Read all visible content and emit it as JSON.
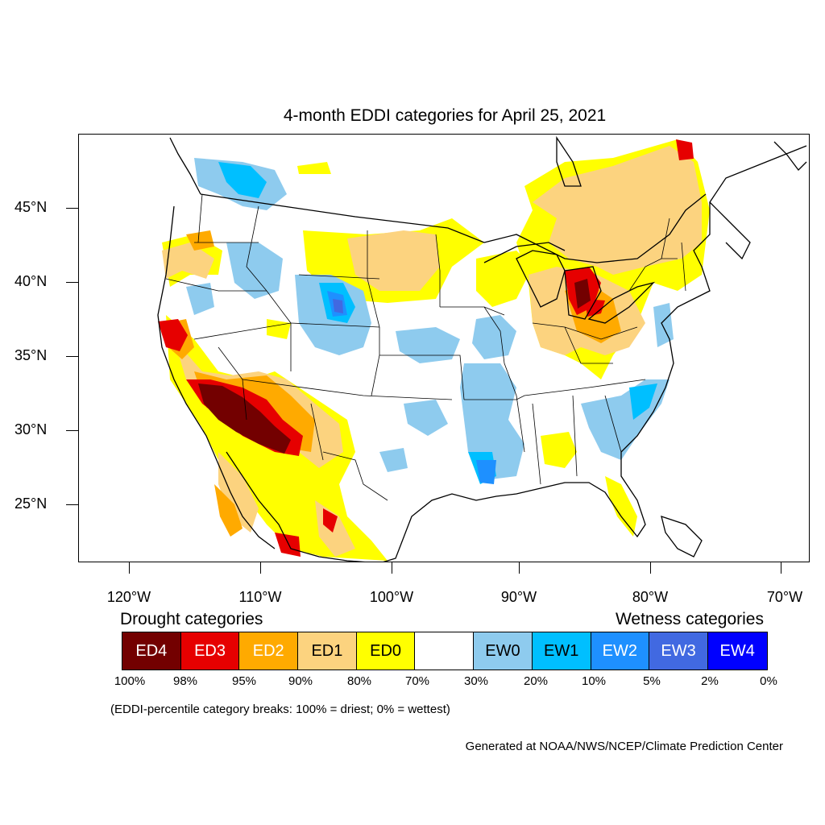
{
  "title": "4-month EDDI categories for April 25, 2021",
  "latitude_labels": [
    "45°N",
    "40°N",
    "35°N",
    "30°N",
    "25°N"
  ],
  "longitude_labels": [
    "120°W",
    "110°W",
    "100°W",
    "90°W",
    "80°W",
    "70°W"
  ],
  "legend": {
    "drought_heading": "Drought categories",
    "wetness_heading": "Wetness categories",
    "categories": [
      {
        "label": "ED4",
        "color": "#730000",
        "text_color": "#ffffff"
      },
      {
        "label": "ED3",
        "color": "#e60000",
        "text_color": "#ffffff"
      },
      {
        "label": "ED2",
        "color": "#ffaa00",
        "text_color": "#ffffff"
      },
      {
        "label": "ED1",
        "color": "#fcd37f",
        "text_color": "#000000"
      },
      {
        "label": "ED0",
        "color": "#ffff00",
        "text_color": "#000000"
      },
      {
        "label": "",
        "color": "#ffffff",
        "text_color": "#000000"
      },
      {
        "label": "EW0",
        "color": "#8ecbee",
        "text_color": "#000000"
      },
      {
        "label": "EW1",
        "color": "#00bfff",
        "text_color": "#000000"
      },
      {
        "label": "EW2",
        "color": "#1e90ff",
        "text_color": "#ffffff"
      },
      {
        "label": "EW3",
        "color": "#4169e1",
        "text_color": "#ffffff"
      },
      {
        "label": "EW4",
        "color": "#0000ff",
        "text_color": "#ffffff"
      }
    ],
    "percentile_labels": [
      "100%",
      "98%",
      "95%",
      "90%",
      "80%",
      "70%",
      "30%",
      "20%",
      "10%",
      "5%",
      "2%",
      "0%"
    ],
    "note": "(EDDI-percentile category breaks: 100% = driest; 0% = wettest)"
  },
  "credit": "Generated at NOAA/NWS/NCEP/Climate Prediction Center"
}
